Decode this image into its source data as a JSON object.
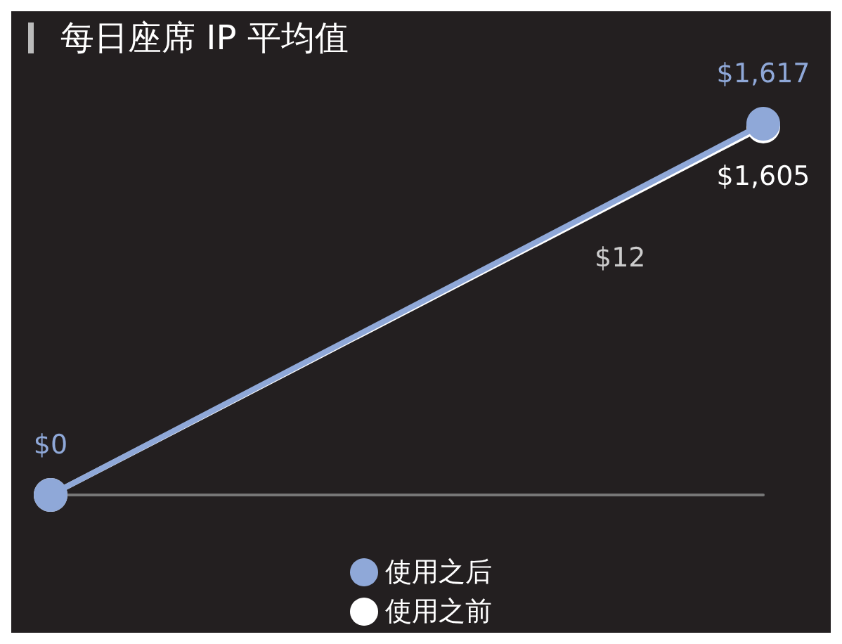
{
  "chart_data": {
    "type": "line",
    "title": "每日座席 IP 平均值",
    "categories": [
      null,
      null
    ],
    "series": [
      {
        "name": "使用之后",
        "color": "#8fa8d8",
        "values": [
          0,
          1617
        ],
        "value_labels": [
          "$0",
          "$1,617"
        ]
      },
      {
        "name": "使用之前",
        "color": "#ffffff",
        "values": [
          0,
          1605
        ],
        "value_labels": [
          null,
          "$1,605"
        ]
      }
    ],
    "annotations": [
      "$12"
    ],
    "legend": "bottom",
    "marker": "circle",
    "line_style": "solid",
    "grid": false
  }
}
